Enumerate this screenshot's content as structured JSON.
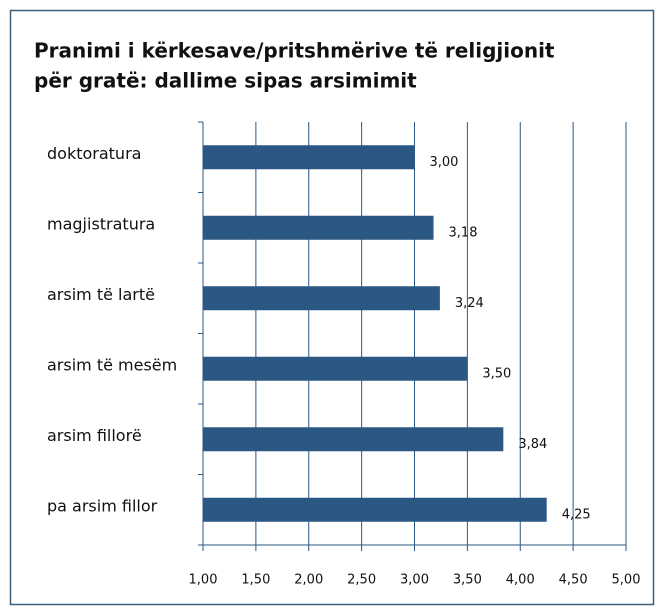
{
  "chart_data": {
    "type": "barh",
    "title": [
      "Pranimi i kërkesave/pritshmërive të religjionit",
      "për gratë: dallime sipas arsimimit"
    ],
    "categories": [
      "doktoratura",
      "magjistratura",
      "arsim të lartë",
      "arsim të mesëm",
      "arsim fillorë",
      "pa arsim fillor"
    ],
    "values": [
      3.0,
      3.18,
      3.24,
      3.5,
      3.84,
      4.25
    ],
    "value_labels": [
      "3,00",
      "3,18",
      "3,24",
      "3,50",
      "3,84",
      "4,25"
    ],
    "color": "#2b5783",
    "xlim": [
      1,
      5
    ],
    "xticks": [
      {
        "value": 1,
        "label": "1,00"
      },
      {
        "value": 1.5,
        "label": "1,50"
      },
      {
        "value": 2,
        "label": "2,00"
      },
      {
        "value": 2.5,
        "label": "2,50"
      },
      {
        "value": 3,
        "label": "3,00"
      },
      {
        "value": 3.5,
        "label": "3,50"
      },
      {
        "value": 4,
        "label": "4,00"
      },
      {
        "value": 4.5,
        "label": "4,50"
      },
      {
        "value": 5,
        "label": "5,00"
      }
    ],
    "grid": true
  }
}
